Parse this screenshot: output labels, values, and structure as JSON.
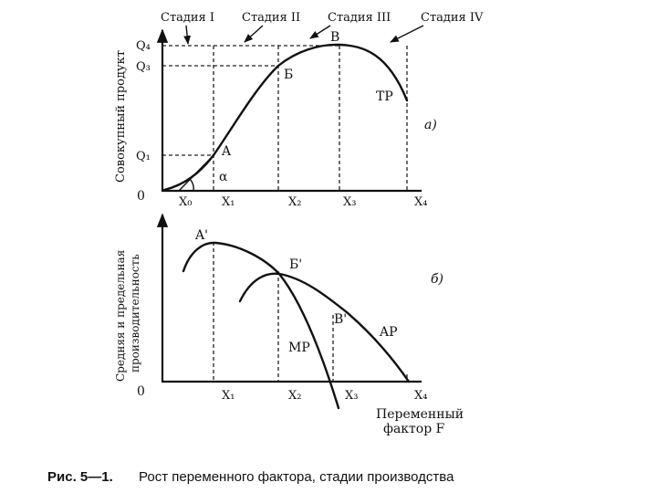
{
  "stages": [
    "Стадия I",
    "Стадия II",
    "Стадия III",
    "Стадия IV"
  ],
  "top": {
    "ylabel": "Совокупный продукт",
    "panel_label": "а)",
    "curve_label": "TP",
    "y_ticks": [
      "Q₄",
      "Q₃",
      "Q₁"
    ],
    "origin": "0",
    "x_ticks": [
      "X₀",
      "X₁",
      "X₂",
      "X₃",
      "X₄"
    ],
    "points": {
      "a": "A",
      "b": "Б",
      "c": "В"
    },
    "angle": "α"
  },
  "bottom": {
    "ylabel_line1": "Средняя и предельная",
    "ylabel_line2": "производительность",
    "panel_label": "б)",
    "ap_label": "AP",
    "mp_label": "MP",
    "origin": "0",
    "x_ticks": [
      "X₁",
      "X₂",
      "X₃",
      "X₄"
    ],
    "points": {
      "a": "A'",
      "b": "Б'",
      "c": "В'"
    },
    "xlabel_line1": "Переменный",
    "xlabel_line2": "фактор F"
  },
  "caption": {
    "prefix": "Рис. 5—1.",
    "text": "Рост переменного фактора, стадии производства"
  }
}
